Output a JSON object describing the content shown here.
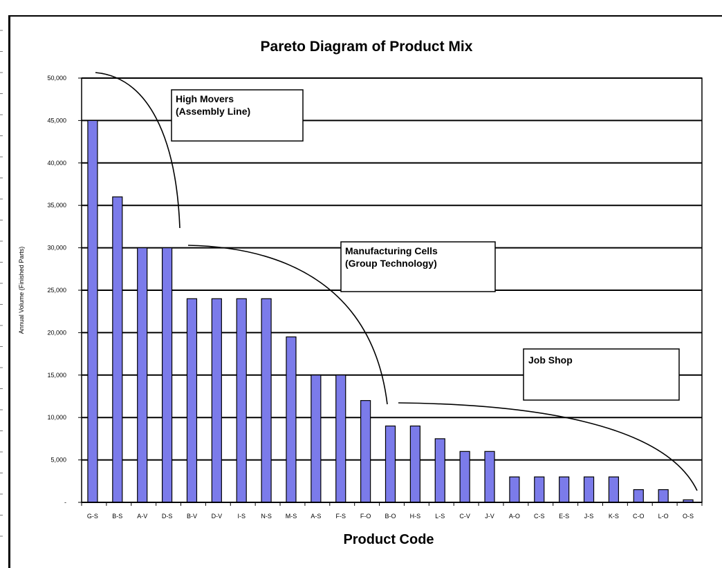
{
  "chart_data": {
    "type": "bar",
    "title": "Pareto Diagram of Product Mix",
    "xlabel": "Product Code",
    "ylabel": "Annual Volume (Finished Parts)",
    "ylim": [
      0,
      50000
    ],
    "yticks": [
      0,
      5000,
      10000,
      15000,
      20000,
      25000,
      30000,
      35000,
      40000,
      45000,
      50000
    ],
    "ytick_labels": [
      "-",
      "5,000",
      "10,000",
      "15,000",
      "20,000",
      "25,000",
      "30,000",
      "35,000",
      "40,000",
      "45,000",
      "50,000"
    ],
    "grid": true,
    "legend": "none",
    "bar_color": "#7b7bea",
    "categories": [
      "G-S",
      "B-S",
      "A-V",
      "D-S",
      "B-V",
      "D-V",
      "I-S",
      "N-S",
      "M-S",
      "A-S",
      "F-S",
      "F-O",
      "B-O",
      "H-S",
      "L-S",
      "C-V",
      "J-V",
      "A-O",
      "C-S",
      "E-S",
      "J-S",
      "K-S",
      "C-O",
      "L-O",
      "O-S"
    ],
    "values": [
      45000,
      36000,
      30000,
      30000,
      24000,
      24000,
      24000,
      24000,
      19500,
      15000,
      15000,
      12000,
      9000,
      9000,
      7500,
      6000,
      6000,
      3000,
      3000,
      3000,
      3000,
      3000,
      1500,
      1500,
      300
    ],
    "annotations": [
      {
        "lines": [
          "High Movers",
          "(Assembly  Line)"
        ]
      },
      {
        "lines": [
          "Manufacturing  Cells",
          "(Group Technology)"
        ]
      },
      {
        "lines": [
          "Job Shop"
        ]
      }
    ]
  }
}
